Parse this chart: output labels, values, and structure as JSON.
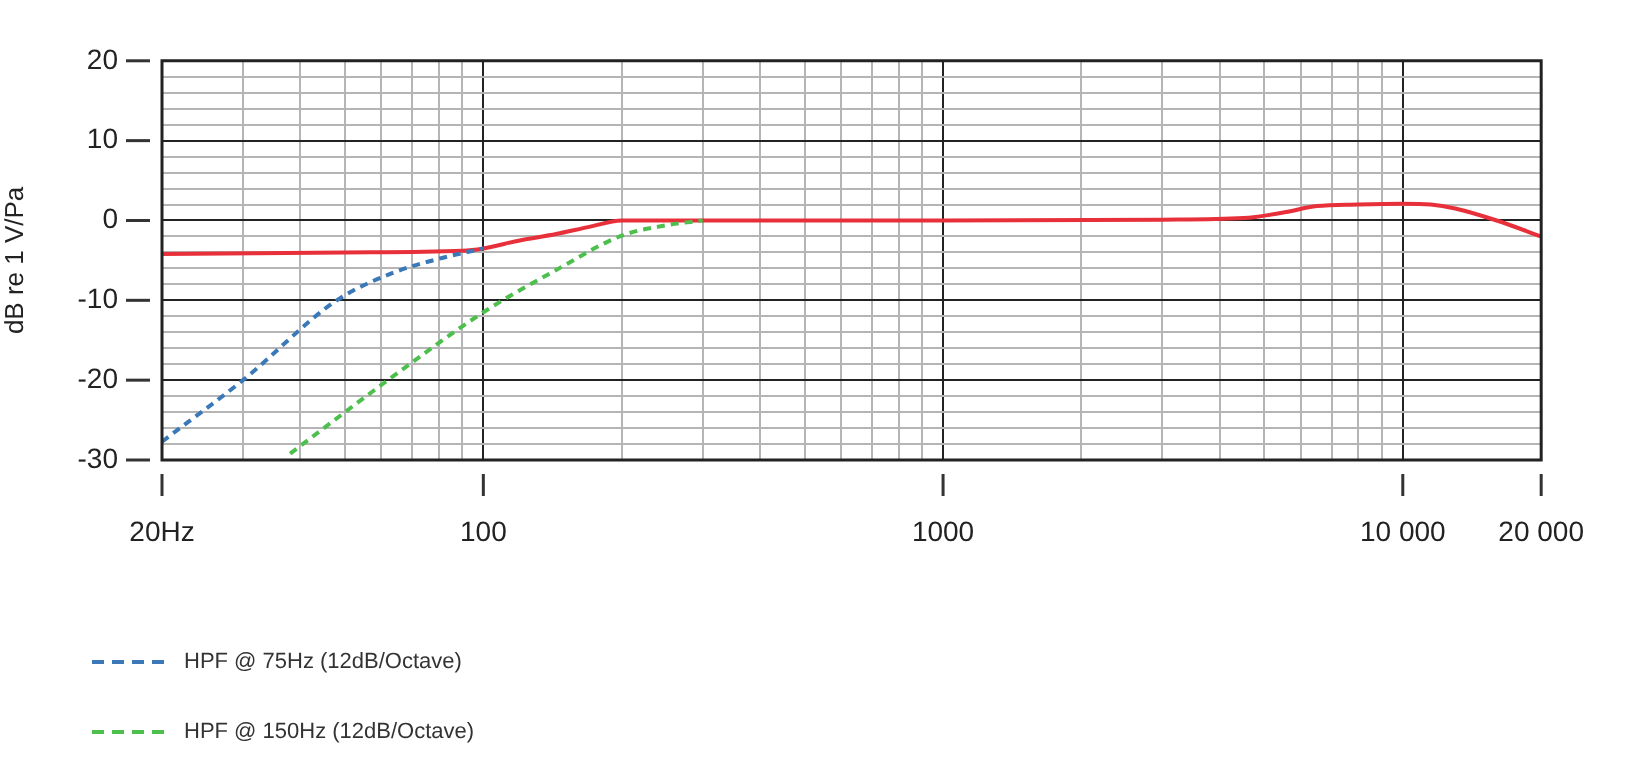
{
  "chart_data": {
    "type": "line",
    "ylabel": "dB re 1 V/Pa",
    "log": "x",
    "xlim": [
      20,
      20000
    ],
    "xticks": [
      {
        "value": 20,
        "label": "20Hz"
      },
      {
        "value": 30,
        "label": null
      },
      {
        "value": 40,
        "label": null
      },
      {
        "value": 50,
        "label": null
      },
      {
        "value": 60,
        "label": null
      },
      {
        "value": 70,
        "label": null
      },
      {
        "value": 80,
        "label": null
      },
      {
        "value": 90,
        "label": null
      },
      {
        "value": 100,
        "label": "100"
      },
      {
        "value": 200,
        "label": null
      },
      {
        "value": 300,
        "label": null
      },
      {
        "value": 400,
        "label": null
      },
      {
        "value": 500,
        "label": null
      },
      {
        "value": 600,
        "label": null
      },
      {
        "value": 700,
        "label": null
      },
      {
        "value": 800,
        "label": null
      },
      {
        "value": 900,
        "label": null
      },
      {
        "value": 1000,
        "label": "1000"
      },
      {
        "value": 2000,
        "label": null
      },
      {
        "value": 3000,
        "label": null
      },
      {
        "value": 4000,
        "label": null
      },
      {
        "value": 5000,
        "label": null
      },
      {
        "value": 6000,
        "label": null
      },
      {
        "value": 7000,
        "label": null
      },
      {
        "value": 8000,
        "label": null
      },
      {
        "value": 9000,
        "label": null
      },
      {
        "value": 10000,
        "label": "10 000"
      },
      {
        "value": 20000,
        "label": "20 000"
      }
    ],
    "ylim": [
      -30,
      20
    ],
    "yticks": [
      -30,
      {
        "value": -28,
        "label": null
      },
      {
        "value": -26,
        "label": null
      },
      {
        "value": -24,
        "label": null
      },
      {
        "value": -22,
        "label": null
      },
      -20,
      {
        "value": -18,
        "label": null
      },
      {
        "value": -16,
        "label": null
      },
      {
        "value": -14,
        "label": null
      },
      {
        "value": -12,
        "label": null
      },
      -10,
      {
        "value": -8,
        "label": null
      },
      {
        "value": -6,
        "label": null
      },
      {
        "value": -4,
        "label": null
      },
      {
        "value": -2,
        "label": null
      },
      0,
      {
        "value": 2,
        "label": null
      },
      {
        "value": 4,
        "label": null
      },
      {
        "value": 6,
        "label": null
      },
      {
        "value": 8,
        "label": null
      },
      10,
      {
        "value": 12,
        "label": null
      },
      {
        "value": 14,
        "label": null
      },
      {
        "value": 16,
        "label": null
      },
      {
        "value": 18,
        "label": null
      },
      20
    ],
    "grid": true,
    "legend": "bottom left",
    "marker": "none",
    "series": [
      {
        "color": "#e8303a",
        "line_style": "solid",
        "x": [
          20,
          50,
          90,
          100,
          120,
          144,
          170,
          200,
          250,
          300,
          1000,
          3000,
          4500,
          5500,
          6500,
          8000,
          10000,
          11500,
          13000,
          16000,
          20000
        ],
        "values": [
          -4.2,
          -4,
          -3.8,
          -3.5,
          -2.5,
          -1.7,
          -0.8,
          0,
          0,
          0,
          0,
          0.1,
          0.3,
          1,
          1.8,
          2,
          2.1,
          2,
          1.5,
          0,
          -2
        ]
      },
      {
        "name": "HPF @ 75Hz (12dB/Octave)",
        "color": "#3a78b8",
        "line_style": "dashed",
        "x": [
          20,
          30,
          48,
          64,
          80,
          100
        ],
        "values": [
          -27.7,
          -20,
          -10,
          -6.5,
          -4.8,
          -3.5
        ]
      },
      {
        "name": "HPF @ 150Hz (12dB/Octave)",
        "color": "#4cbf4c",
        "line_style": "dashed",
        "x": [
          38,
          62,
          100,
          144,
          200,
          250,
          300
        ],
        "values": [
          -29.2,
          -20,
          -11.5,
          -6.2,
          -1.9,
          -0.6,
          0
        ]
      }
    ]
  }
}
